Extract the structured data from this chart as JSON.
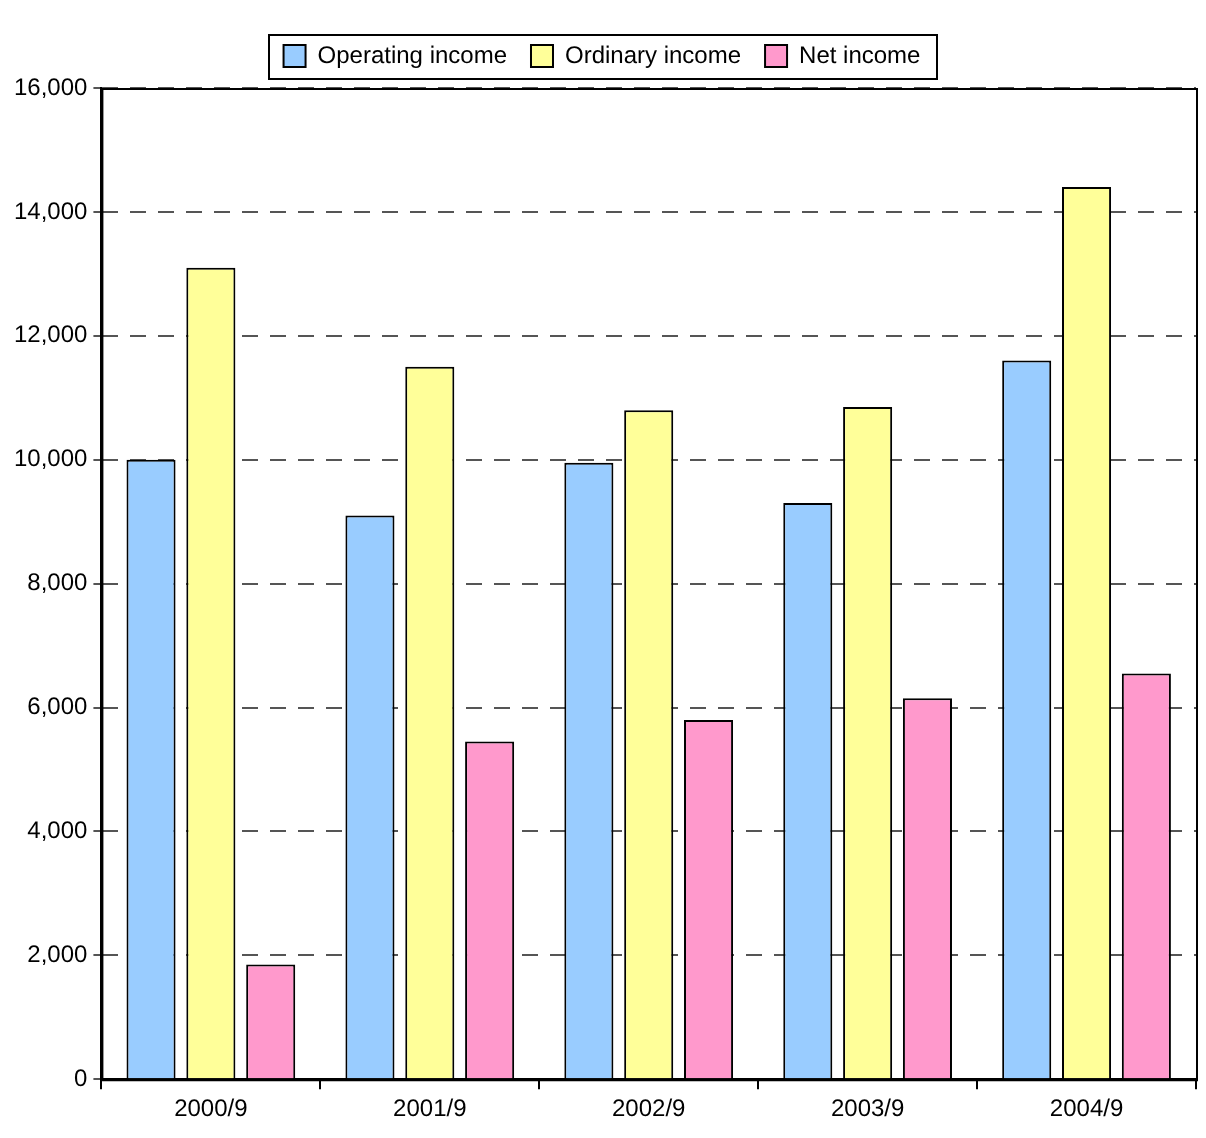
{
  "chart_data": {
    "type": "bar",
    "categories": [
      "2000/9",
      "2001/9",
      "2002/9",
      "2003/9",
      "2004/9"
    ],
    "series": [
      {
        "name": "Operating income",
        "color": "#99ccff",
        "values": [
          10000,
          9100,
          9950,
          9300,
          11600
        ]
      },
      {
        "name": "Ordinary income",
        "color": "#ffff99",
        "values": [
          13100,
          11500,
          10800,
          10850,
          14400
        ]
      },
      {
        "name": "Net income",
        "color": "#ff99cc",
        "values": [
          1850,
          5450,
          5800,
          6150,
          6550
        ]
      }
    ],
    "ylim": [
      0,
      16000
    ],
    "yticks": [
      0,
      {
        "value": 2000,
        "label": "2,000"
      },
      {
        "value": 4000,
        "label": "4,000"
      },
      {
        "value": 6000,
        "label": "6,000"
      },
      {
        "value": 8000,
        "label": "8,000"
      },
      {
        "value": 10000,
        "label": "10,000"
      },
      {
        "value": 12000,
        "label": "12,000"
      },
      {
        "value": 14000,
        "label": "14,000"
      },
      {
        "value": 16000,
        "label": "16,000"
      }
    ],
    "grid": "y",
    "legend": "top"
  }
}
